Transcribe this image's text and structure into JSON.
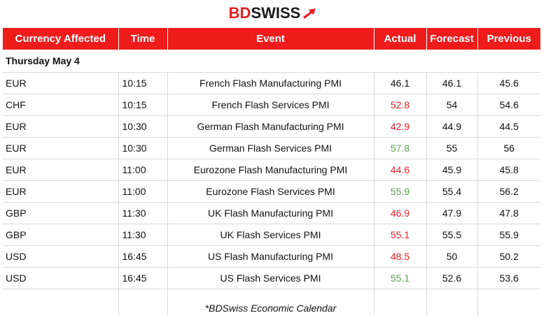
{
  "brand": {
    "part1": "BD",
    "part2": "SWISS",
    "accent_color": "#ef1c1c",
    "icon": "bdswiss-arrow-icon"
  },
  "columns": [
    "Currency Affected",
    "Time",
    "Event",
    "Actual",
    "Forecast",
    "Previous"
  ],
  "day": "Thursday May 4",
  "rows": [
    {
      "currency": "EUR",
      "time": "10:15",
      "event": "French Flash Manufacturing PMI",
      "actual": "46.1",
      "actual_status": "neutral",
      "forecast": "46.1",
      "previous": "45.6"
    },
    {
      "currency": "CHF",
      "time": "10:15",
      "event": "French Flash Services PMI",
      "actual": "52.8",
      "actual_status": "negative",
      "forecast": "54",
      "previous": "54.6"
    },
    {
      "currency": "EUR",
      "time": "10:30",
      "event": "German Flash Manufacturing PMI",
      "actual": "42.9",
      "actual_status": "negative",
      "forecast": "44.9",
      "previous": "44.5"
    },
    {
      "currency": "EUR",
      "time": "10:30",
      "event": "German Flash Services PMI",
      "actual": "57.8",
      "actual_status": "positive",
      "forecast": "55",
      "previous": "56"
    },
    {
      "currency": "EUR",
      "time": "11:00",
      "event": "Eurozone Flash Manufacturing PMI",
      "actual": "44.6",
      "actual_status": "negative",
      "forecast": "45.9",
      "previous": "45.8"
    },
    {
      "currency": "EUR",
      "time": "11:00",
      "event": "Eurozone Flash Services PMI",
      "actual": "55.9",
      "actual_status": "positive",
      "forecast": "55.4",
      "previous": "56.2"
    },
    {
      "currency": "GBP",
      "time": "11:30",
      "event": "UK Flash Manufacturing PMI",
      "actual": "46.9",
      "actual_status": "negative",
      "forecast": "47.9",
      "previous": "47.8"
    },
    {
      "currency": "GBP",
      "time": "11:30",
      "event": "UK Flash Services PMI",
      "actual": "55.1",
      "actual_status": "negative",
      "forecast": "55.5",
      "previous": "55.9"
    },
    {
      "currency": "USD",
      "time": "16:45",
      "event": "US Flash Manufacturing PMI",
      "actual": "48.5",
      "actual_status": "negative",
      "forecast": "50",
      "previous": "50.2"
    },
    {
      "currency": "USD",
      "time": "16:45",
      "event": "US Flash Services PMI",
      "actual": "55.1",
      "actual_status": "positive",
      "forecast": "52.6",
      "previous": "53.6"
    }
  ],
  "status_colors": {
    "negative": "#e8212a",
    "positive": "#5aa04a",
    "neutral": "#111111"
  },
  "footnote": "*BDSwiss Economic Calendar"
}
